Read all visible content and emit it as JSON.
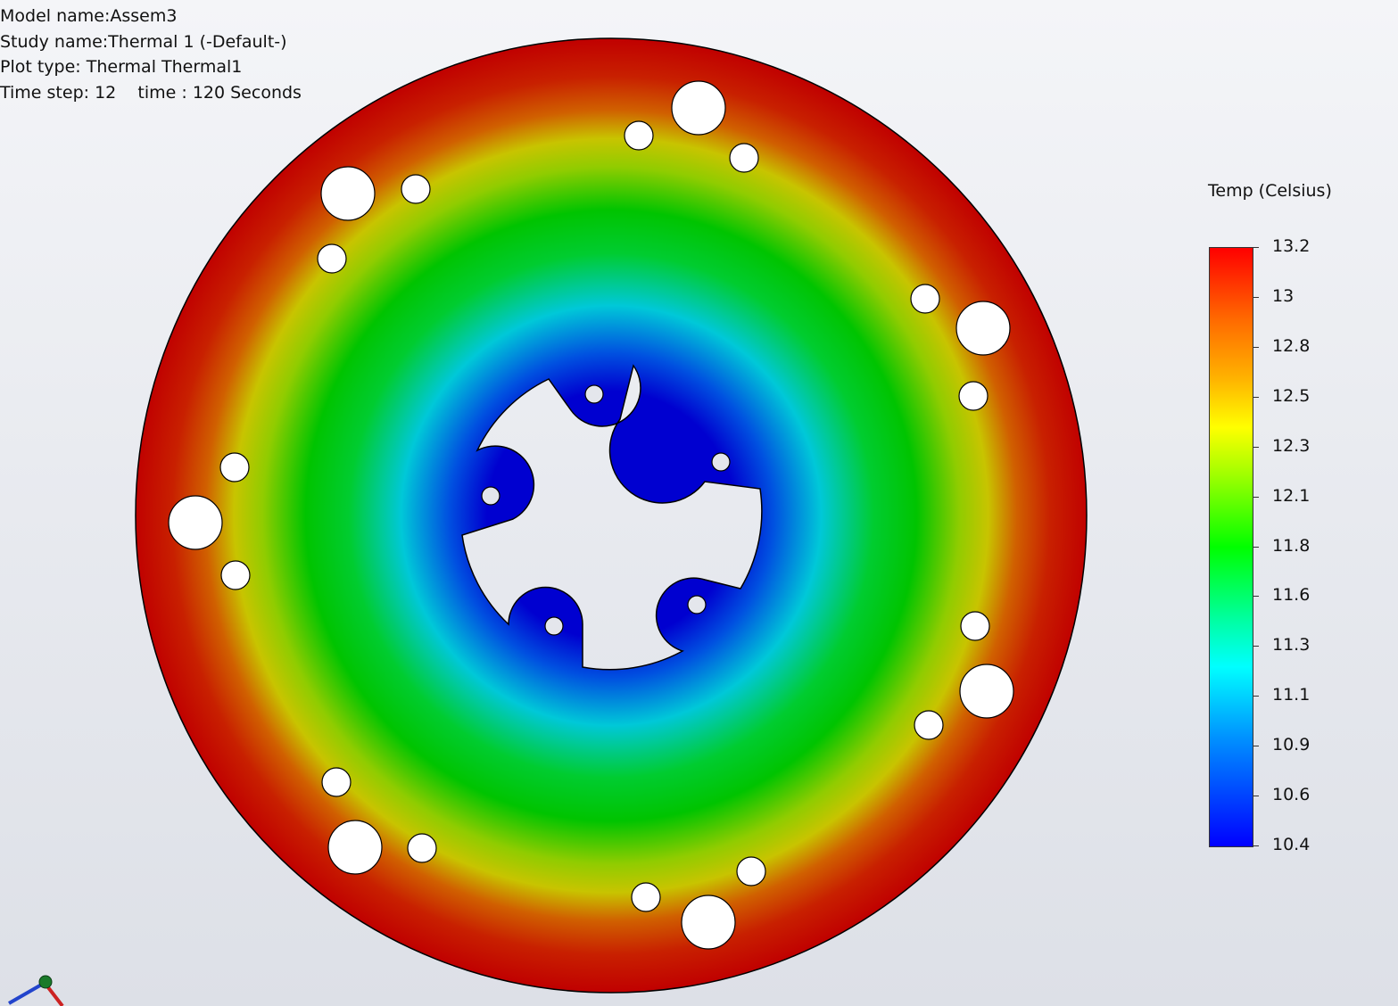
{
  "info": {
    "model_name": "Model name:Assem3",
    "study_name": "Study name:Thermal 1 (-Default-)",
    "plot_type": "Plot type: Thermal Thermal1",
    "time_step": "Time step: 12    time : 120 Seconds"
  },
  "legend": {
    "title": "Temp (Celsius)",
    "ticks": [
      "13.2",
      "13",
      "12.8",
      "12.5",
      "12.3",
      "12.1",
      "11.8",
      "11.6",
      "11.3",
      "11.1",
      "10.9",
      "10.6",
      "10.4"
    ],
    "colors": {
      "max": "#ff0000",
      "mid": "#00ff00",
      "min": "#0000ff"
    }
  },
  "model": {
    "part": "thermal-disc",
    "hot_color": "#c80000",
    "cold_color": "#0000d0"
  },
  "triad": {
    "icon": "coordinate-triad-icon"
  }
}
